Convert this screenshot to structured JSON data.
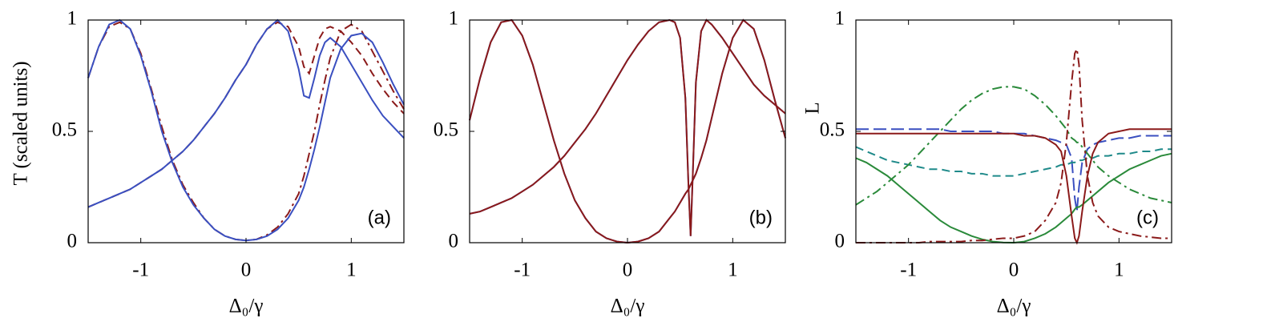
{
  "chart_data": [
    {
      "type": "line",
      "label": "(a)",
      "xlabel": "Δ₀/γ",
      "ylabel": "T (scaled units)",
      "xlim": [
        -1.5,
        1.5
      ],
      "ylim": [
        0,
        1
      ],
      "xticks": [
        -1,
        0,
        1
      ],
      "yticks": [
        0,
        0.5,
        1
      ],
      "x": [
        -1.5,
        -1.4,
        -1.3,
        -1.2,
        -1.1,
        -1.0,
        -0.9,
        -0.8,
        -0.7,
        -0.6,
        -0.5,
        -0.4,
        -0.3,
        -0.2,
        -0.1,
        0,
        0.1,
        0.2,
        0.3,
        0.4,
        0.5,
        0.55,
        0.6,
        0.65,
        0.7,
        0.75,
        0.8,
        0.9,
        1.0,
        1.1,
        1.2,
        1.3,
        1.4,
        1.5
      ],
      "series": [
        {
          "color": "#8b1a1a",
          "style": "dashdot",
          "values": [
            0.74,
            0.88,
            0.97,
            0.99,
            0.96,
            0.85,
            0.69,
            0.52,
            0.37,
            0.26,
            0.18,
            0.11,
            0.06,
            0.03,
            0.015,
            0.01,
            0.015,
            0.035,
            0.07,
            0.13,
            0.22,
            0.3,
            0.4,
            0.5,
            0.62,
            0.73,
            0.83,
            0.95,
            0.98,
            0.95,
            0.86,
            0.77,
            0.68,
            0.6
          ]
        },
        {
          "color": "#8b1a1a",
          "style": "dashed",
          "values": [
            0.16,
            0.18,
            0.2,
            0.22,
            0.24,
            0.27,
            0.3,
            0.33,
            0.37,
            0.41,
            0.46,
            0.52,
            0.58,
            0.65,
            0.73,
            0.8,
            0.89,
            0.96,
            0.99,
            0.97,
            0.88,
            0.79,
            0.76,
            0.84,
            0.92,
            0.96,
            0.97,
            0.95,
            0.9,
            0.84,
            0.76,
            0.69,
            0.63,
            0.58
          ]
        },
        {
          "color": "#3a4fc0",
          "style": "solid",
          "values": [
            0.74,
            0.88,
            0.98,
            1.0,
            0.96,
            0.84,
            0.68,
            0.5,
            0.36,
            0.25,
            0.17,
            0.11,
            0.06,
            0.03,
            0.015,
            0.01,
            0.015,
            0.03,
            0.06,
            0.11,
            0.19,
            0.25,
            0.33,
            0.42,
            0.52,
            0.63,
            0.74,
            0.87,
            0.93,
            0.94,
            0.9,
            0.81,
            0.71,
            0.62
          ]
        },
        {
          "color": "#3a4fc0",
          "style": "solid",
          "values": [
            0.16,
            0.18,
            0.2,
            0.22,
            0.24,
            0.27,
            0.3,
            0.33,
            0.37,
            0.41,
            0.46,
            0.52,
            0.58,
            0.65,
            0.73,
            0.8,
            0.89,
            0.96,
            1.0,
            0.95,
            0.78,
            0.66,
            0.65,
            0.74,
            0.84,
            0.9,
            0.92,
            0.88,
            0.8,
            0.72,
            0.64,
            0.57,
            0.52,
            0.47
          ]
        }
      ]
    },
    {
      "type": "line",
      "label": "(b)",
      "xlabel": "Δ₀/γ",
      "xlim": [
        -1.5,
        1.5
      ],
      "ylim": [
        0,
        1
      ],
      "xticks": [
        -1,
        0,
        1
      ],
      "yticks": [
        0,
        0.5,
        1
      ],
      "x": [
        -1.5,
        -1.4,
        -1.3,
        -1.2,
        -1.1,
        -1.0,
        -0.9,
        -0.8,
        -0.7,
        -0.6,
        -0.5,
        -0.4,
        -0.3,
        -0.2,
        -0.1,
        0,
        0.1,
        0.2,
        0.3,
        0.4,
        0.45,
        0.5,
        0.55,
        0.58,
        0.6,
        0.62,
        0.65,
        0.7,
        0.75,
        0.8,
        0.9,
        1.0,
        1.1,
        1.2,
        1.3,
        1.4,
        1.5
      ],
      "series": [
        {
          "color": "#3a4fc0",
          "style": "solid",
          "values": [
            0.55,
            0.74,
            0.9,
            0.99,
            1.0,
            0.93,
            0.8,
            0.63,
            0.46,
            0.31,
            0.19,
            0.11,
            0.05,
            0.02,
            0.005,
            0,
            0.005,
            0.02,
            0.05,
            0.11,
            0.14,
            0.18,
            0.22,
            0.24,
            0.26,
            0.28,
            0.31,
            0.38,
            0.46,
            0.56,
            0.76,
            0.92,
            1.0,
            0.96,
            0.82,
            0.64,
            0.47
          ]
        },
        {
          "color": "#3a4fc0",
          "style": "solid",
          "values": [
            0.13,
            0.14,
            0.16,
            0.18,
            0.2,
            0.23,
            0.26,
            0.3,
            0.34,
            0.39,
            0.45,
            0.51,
            0.58,
            0.66,
            0.74,
            0.82,
            0.89,
            0.95,
            0.99,
            1.0,
            0.99,
            0.92,
            0.65,
            0.25,
            0.03,
            0.3,
            0.72,
            0.95,
            1.0,
            0.98,
            0.92,
            0.85,
            0.78,
            0.71,
            0.66,
            0.62,
            0.58
          ]
        },
        {
          "color": "#8b1a1a",
          "style": "solid",
          "values": [
            0.55,
            0.74,
            0.9,
            0.99,
            1.0,
            0.93,
            0.8,
            0.63,
            0.46,
            0.31,
            0.19,
            0.11,
            0.05,
            0.02,
            0.005,
            0,
            0.005,
            0.02,
            0.05,
            0.11,
            0.14,
            0.18,
            0.22,
            0.24,
            0.26,
            0.28,
            0.31,
            0.38,
            0.46,
            0.56,
            0.76,
            0.92,
            1.0,
            0.96,
            0.82,
            0.64,
            0.47
          ]
        },
        {
          "color": "#8b1a1a",
          "style": "solid",
          "values": [
            0.13,
            0.14,
            0.16,
            0.18,
            0.2,
            0.23,
            0.26,
            0.3,
            0.34,
            0.39,
            0.45,
            0.51,
            0.58,
            0.66,
            0.74,
            0.82,
            0.89,
            0.95,
            0.99,
            1.0,
            0.99,
            0.92,
            0.65,
            0.25,
            0.03,
            0.3,
            0.72,
            0.95,
            1.0,
            0.98,
            0.92,
            0.85,
            0.78,
            0.71,
            0.66,
            0.62,
            0.58
          ]
        }
      ]
    },
    {
      "type": "line",
      "label": "(c)",
      "xlabel": "Δ₀/γ",
      "ylabel": "L",
      "xlim": [
        -1.5,
        1.5
      ],
      "ylim": [
        0,
        1
      ],
      "xticks": [
        -1,
        0,
        1
      ],
      "yticks": [
        0,
        0.5,
        1
      ],
      "x": [
        -1.5,
        -1.4,
        -1.3,
        -1.2,
        -1.1,
        -1.0,
        -0.9,
        -0.8,
        -0.7,
        -0.6,
        -0.5,
        -0.4,
        -0.3,
        -0.2,
        -0.1,
        0,
        0.1,
        0.2,
        0.3,
        0.4,
        0.45,
        0.5,
        0.55,
        0.58,
        0.6,
        0.62,
        0.65,
        0.7,
        0.75,
        0.8,
        0.9,
        1.0,
        1.1,
        1.2,
        1.3,
        1.4,
        1.5
      ],
      "series": [
        {
          "color": "#3a4fc0",
          "style": "longdash",
          "values": [
            0.51,
            0.51,
            0.51,
            0.51,
            0.51,
            0.51,
            0.51,
            0.51,
            0.51,
            0.5,
            0.5,
            0.5,
            0.5,
            0.5,
            0.49,
            0.49,
            0.49,
            0.48,
            0.47,
            0.46,
            0.45,
            0.44,
            0.38,
            0.2,
            0.14,
            0.25,
            0.36,
            0.42,
            0.44,
            0.45,
            0.46,
            0.47,
            0.47,
            0.48,
            0.48,
            0.48,
            0.48
          ]
        },
        {
          "color": "#1f8a8a",
          "style": "dashed",
          "values": [
            0.43,
            0.41,
            0.39,
            0.37,
            0.36,
            0.35,
            0.34,
            0.33,
            0.33,
            0.32,
            0.32,
            0.31,
            0.31,
            0.3,
            0.3,
            0.3,
            0.31,
            0.32,
            0.33,
            0.34,
            0.35,
            0.35,
            0.36,
            0.36,
            0.37,
            0.37,
            0.37,
            0.38,
            0.38,
            0.39,
            0.39,
            0.4,
            0.4,
            0.41,
            0.41,
            0.42,
            0.42
          ]
        },
        {
          "color": "#2a8a3a",
          "style": "dashdot",
          "values": [
            0.17,
            0.2,
            0.23,
            0.27,
            0.31,
            0.35,
            0.4,
            0.45,
            0.5,
            0.55,
            0.6,
            0.64,
            0.67,
            0.69,
            0.7,
            0.7,
            0.69,
            0.66,
            0.62,
            0.57,
            0.54,
            0.51,
            0.47,
            0.46,
            0.45,
            0.45,
            0.43,
            0.4,
            0.37,
            0.34,
            0.3,
            0.27,
            0.24,
            0.22,
            0.2,
            0.19,
            0.18
          ]
        },
        {
          "color": "#2a8a3a",
          "style": "solid",
          "values": [
            0.38,
            0.36,
            0.33,
            0.3,
            0.26,
            0.22,
            0.18,
            0.14,
            0.1,
            0.07,
            0.05,
            0.03,
            0.015,
            0.005,
            0.001,
            0,
            0.005,
            0.02,
            0.04,
            0.07,
            0.09,
            0.11,
            0.13,
            0.15,
            0.16,
            0.16,
            0.17,
            0.19,
            0.21,
            0.23,
            0.27,
            0.3,
            0.33,
            0.35,
            0.37,
            0.39,
            0.4
          ]
        },
        {
          "color": "#8b1a1a",
          "style": "dashdot",
          "values": [
            0,
            0,
            0,
            0,
            0,
            0,
            0,
            0.005,
            0.005,
            0.005,
            0.005,
            0.01,
            0.01,
            0.015,
            0.02,
            0.02,
            0.03,
            0.05,
            0.1,
            0.18,
            0.27,
            0.45,
            0.72,
            0.85,
            0.87,
            0.8,
            0.55,
            0.3,
            0.18,
            0.12,
            0.07,
            0.05,
            0.04,
            0.03,
            0.025,
            0.02,
            0.02
          ]
        },
        {
          "color": "#8b1a1a",
          "style": "solid",
          "values": [
            0.49,
            0.49,
            0.49,
            0.49,
            0.49,
            0.49,
            0.49,
            0.49,
            0.49,
            0.49,
            0.49,
            0.49,
            0.49,
            0.49,
            0.49,
            0.49,
            0.48,
            0.48,
            0.47,
            0.44,
            0.41,
            0.3,
            0.12,
            0.02,
            0,
            0.03,
            0.14,
            0.3,
            0.4,
            0.45,
            0.49,
            0.5,
            0.51,
            0.51,
            0.51,
            0.51,
            0.51
          ]
        }
      ]
    }
  ]
}
